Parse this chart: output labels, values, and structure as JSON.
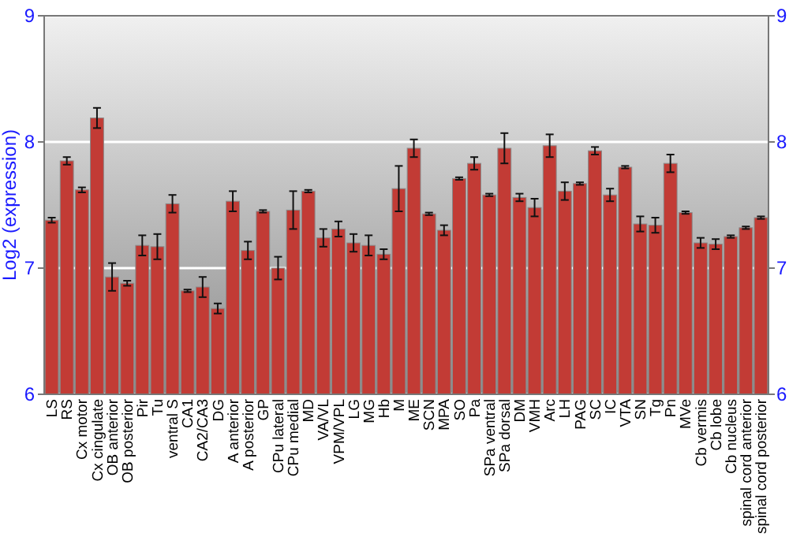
{
  "chart_data": {
    "type": "bar",
    "ylabel": "Log2 (expression)",
    "categories": [
      "LS",
      "RS",
      "Cx motor",
      "Cx cingulate",
      "OB anterior",
      "OB posterior",
      "Pir",
      "Tu",
      "ventral S",
      "CA1",
      "CA2/CA3",
      "DG",
      "A anterior",
      "A posterior",
      "GP",
      "CPu lateral",
      "CPu medial",
      "MD",
      "VA/VL",
      "VPM/VPL",
      "LG",
      "MG",
      "Hb",
      "M",
      "ME",
      "SCN",
      "MPA",
      "SO",
      "Pa",
      "SPa ventral",
      "SPa dorsal",
      "DM",
      "VMH",
      "Arc",
      "LH",
      "PAG",
      "SC",
      "IC",
      "VTA",
      "SN",
      "Tg",
      "Pn",
      "MVe",
      "Cb vermis",
      "Cb lobe",
      "Cb nucleus",
      "spinal cord anterior",
      "spinal cord posterior"
    ],
    "values": [
      7.38,
      7.85,
      7.62,
      8.19,
      6.93,
      6.88,
      7.18,
      7.17,
      7.51,
      6.82,
      6.85,
      6.68,
      7.53,
      7.14,
      7.45,
      7.0,
      7.46,
      7.61,
      7.24,
      7.31,
      7.2,
      7.18,
      7.11,
      7.63,
      7.95,
      7.43,
      7.3,
      7.71,
      7.83,
      7.58,
      7.95,
      7.56,
      7.48,
      7.97,
      7.61,
      7.67,
      7.93,
      7.58,
      7.8,
      7.35,
      7.34,
      7.83,
      7.44,
      7.2,
      7.19,
      7.25,
      7.32,
      7.4
    ],
    "errors": [
      0.02,
      0.03,
      0.02,
      0.08,
      0.11,
      0.02,
      0.08,
      0.1,
      0.07,
      0.01,
      0.08,
      0.04,
      0.08,
      0.07,
      0.01,
      0.09,
      0.15,
      0.01,
      0.07,
      0.06,
      0.07,
      0.08,
      0.04,
      0.18,
      0.07,
      0.01,
      0.04,
      0.01,
      0.05,
      0.01,
      0.12,
      0.03,
      0.07,
      0.09,
      0.07,
      0.01,
      0.03,
      0.05,
      0.01,
      0.06,
      0.06,
      0.07,
      0.01,
      0.04,
      0.04,
      0.01,
      0.01,
      0.01
    ],
    "color": "#c23b35",
    "ylim": [
      6,
      9
    ],
    "yticks": [
      6,
      7,
      8,
      9
    ],
    "y2lim": [
      6,
      9
    ],
    "y2ticks": [
      6,
      7,
      8,
      9
    ],
    "grid": "y"
  }
}
